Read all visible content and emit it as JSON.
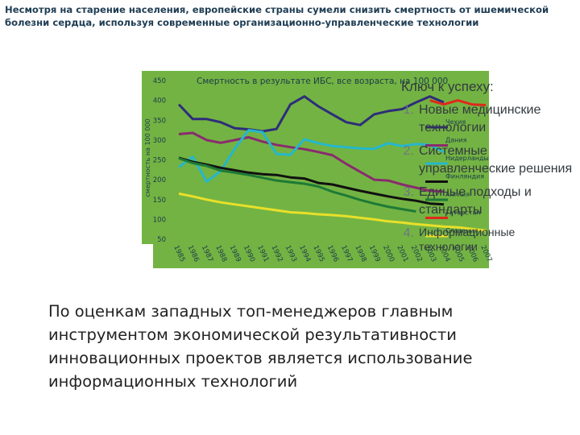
{
  "page": {
    "title": "Несмотря на старение населения, европейские страны сумели снизить смертность от ишемической болезни сердца, используя современные организационно-управленческие технологии"
  },
  "key": {
    "title": "Ключ к успеху:",
    "items": [
      {
        "num": "1.",
        "text": "Новые медицинские технологии"
      },
      {
        "num": "2.",
        "text": "Системные управленческие решения"
      },
      {
        "num": "3.",
        "text": "Единые подходы и стандарты"
      },
      {
        "num": "4.",
        "text": "Информационные технологии"
      }
    ]
  },
  "bottom_text": "По оценкам западных топ-менеджеров главным инструментом экономической результативности инновационных проектов является использование информационных технологий",
  "chart_data": {
    "type": "line",
    "title": "Смертность в результате ИБС, все возраста, на 100 000",
    "ylabel": "смертность на 100 000",
    "xlabel": "",
    "ylim": [
      50,
      450
    ],
    "yticks": [
      50,
      100,
      150,
      200,
      250,
      300,
      350,
      400,
      450
    ],
    "x": [
      "1985",
      "1986",
      "1987",
      "1988",
      "1989",
      "1990",
      "1991",
      "1992",
      "1993",
      "1994",
      "1995",
      "1996",
      "1997",
      "1998",
      "1999",
      "2000",
      "2001",
      "2002",
      "2003",
      "2004",
      "2005",
      "2006",
      "2007"
    ],
    "grid": false,
    "background": "#73b343",
    "legend_position": "right",
    "series": [
      {
        "name": "Чехия",
        "color": "#2d2d7a",
        "values": [
          390,
          353,
          353,
          345,
          330,
          327,
          322,
          328,
          390,
          410,
          385,
          365,
          345,
          338,
          365,
          373,
          378,
          395,
          410,
          395,
          null,
          null,
          null
        ]
      },
      {
        "name": "Дания",
        "color": "#8a2b6e",
        "values": [
          315,
          318,
          300,
          293,
          300,
          307,
          296,
          288,
          282,
          277,
          270,
          262,
          240,
          220,
          200,
          198,
          188,
          180,
          172,
          170,
          null,
          null,
          null
        ]
      },
      {
        "name": "Нидерланды",
        "color": "#25b7cc",
        "values": [
          232,
          258,
          195,
          222,
          278,
          325,
          320,
          265,
          263,
          302,
          292,
          285,
          282,
          279,
          278,
          292,
          285,
          290,
          288,
          270,
          null,
          null,
          null
        ]
      },
      {
        "name": "Финляндия",
        "color": "#111111",
        "values": [
          255,
          245,
          238,
          230,
          224,
          218,
          214,
          212,
          206,
          203,
          192,
          188,
          180,
          172,
          165,
          158,
          152,
          147,
          140,
          138,
          null,
          null,
          null
        ]
      },
      {
        "name": "Англия",
        "color": "#1e7a36",
        "values": [
          254,
          242,
          235,
          223,
          218,
          212,
          205,
          198,
          194,
          190,
          183,
          170,
          160,
          149,
          140,
          132,
          126,
          120,
          null,
          null,
          null,
          null,
          null
        ]
      },
      {
        "name": "Татарстан",
        "color": "#e0281c",
        "values": [
          null,
          null,
          null,
          null,
          null,
          null,
          null,
          null,
          null,
          null,
          null,
          null,
          null,
          null,
          null,
          null,
          null,
          null,
          400,
          390,
          400,
          390,
          388
        ]
      },
      {
        "name": "Словения",
        "color": "#e8e02a",
        "values": [
          165,
          158,
          150,
          143,
          138,
          133,
          128,
          123,
          118,
          116,
          113,
          111,
          108,
          104,
          100,
          95,
          92,
          88,
          85,
          82,
          80,
          76,
          72
        ]
      }
    ]
  }
}
